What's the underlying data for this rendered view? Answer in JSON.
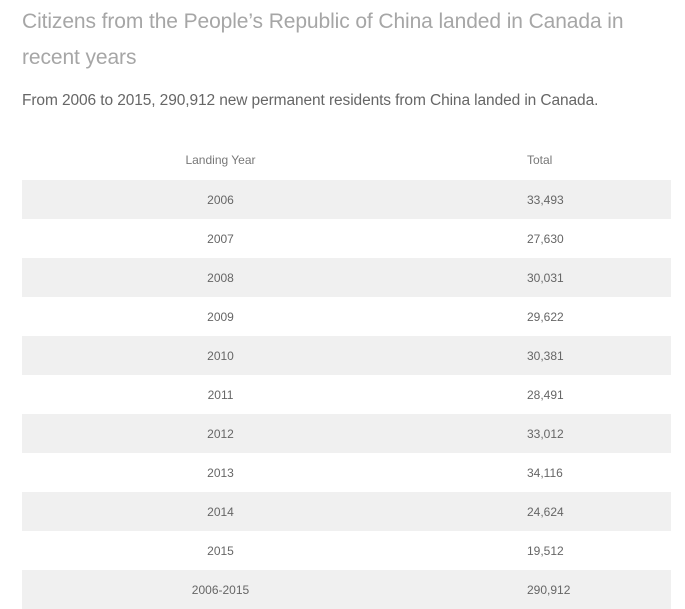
{
  "title": "Citizens from the People’s Republic of China landed in Canada in recent years",
  "subtitle": "From 2006 to 2015, 290,912 new permanent residents from China landed in Canada.",
  "table": {
    "headers": [
      "Landing Year",
      "Total"
    ],
    "rows": [
      {
        "year": "2006",
        "total": "33,493"
      },
      {
        "year": "2007",
        "total": "27,630"
      },
      {
        "year": "2008",
        "total": "30,031"
      },
      {
        "year": "2009",
        "total": "29,622"
      },
      {
        "year": "2010",
        "total": "30,381"
      },
      {
        "year": "2011",
        "total": "28,491"
      },
      {
        "year": "2012",
        "total": "33,012"
      },
      {
        "year": "2013",
        "total": "34,116"
      },
      {
        "year": "2014",
        "total": "24,624"
      },
      {
        "year": "2015",
        "total": "19,512"
      },
      {
        "year": "2006-2015",
        "total": "290,912"
      }
    ]
  }
}
